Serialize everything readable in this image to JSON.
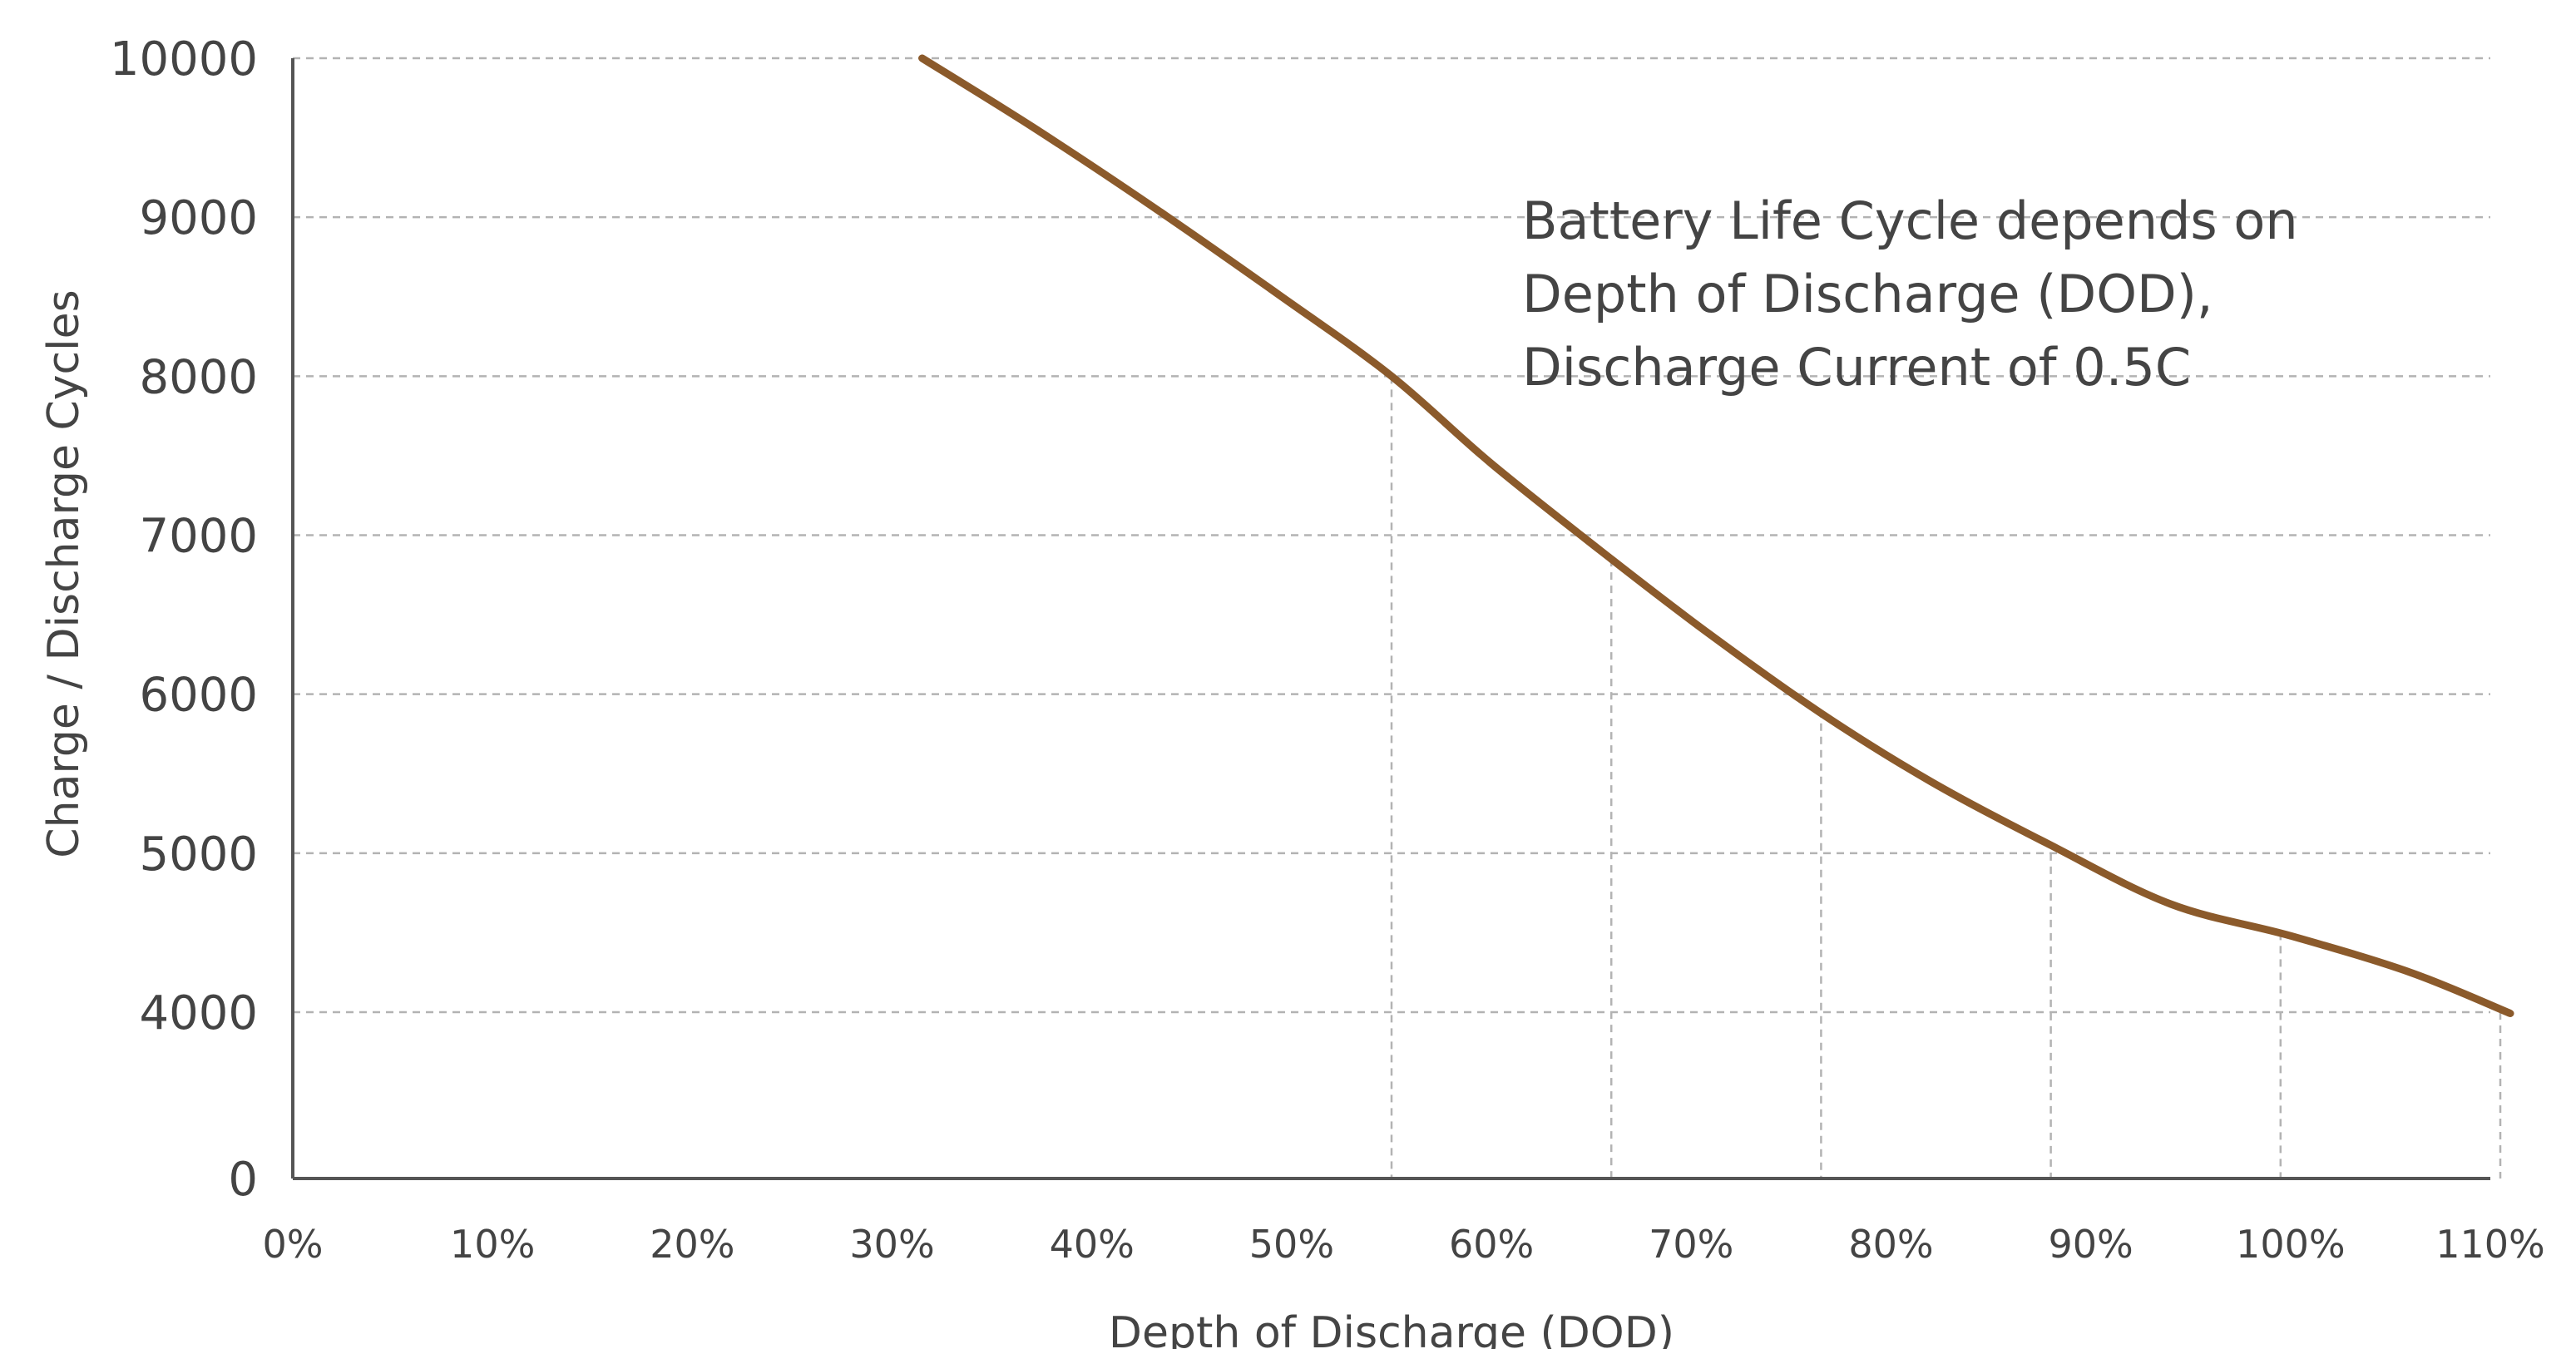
{
  "chart_data": {
    "type": "line",
    "title": "",
    "xlabel": "Depth of Discharge (DOD)",
    "ylabel": "Charge / Discharge Cycles",
    "x_tick_labels": [
      "0%",
      "10%",
      "20%",
      "30%",
      "40%",
      "50%",
      "60%",
      "70%",
      "80%",
      "90%",
      "100%",
      "110%"
    ],
    "y_tick_labels": [
      "0",
      "4000",
      "5000",
      "6000",
      "7000",
      "8000",
      "9000",
      "10000"
    ],
    "x_ticks": [
      0,
      10,
      20,
      30,
      40,
      50,
      60,
      70,
      80,
      90,
      100,
      110
    ],
    "y_ticks": [
      0,
      4000,
      5000,
      6000,
      7000,
      8000,
      9000,
      10000
    ],
    "xlim": [
      0,
      110
    ],
    "y_axis_segments": [
      {
        "from": 0,
        "to": 4000
      },
      {
        "from": 4000,
        "to": 10000
      }
    ],
    "grid": "dashed horizontal lines at y ticks; dashed drop lines at highlighted points",
    "annotation": [
      "Battery Life Cycle depends on",
      "Depth of Discharge (DOD),",
      "Discharge Current of 0.5C"
    ],
    "line_color": "#8b5a2b",
    "grid_color": "#b3b3b3",
    "text_color": "#444444",
    "series": [
      {
        "values": [
          {
            "x": 31.5,
            "y": 10000
          },
          {
            "x": 37,
            "y": 9570
          },
          {
            "x": 43,
            "y": 9070
          },
          {
            "x": 49.5,
            "y": 8500
          },
          {
            "x": 55,
            "y": 8000
          },
          {
            "x": 60,
            "y": 7450
          },
          {
            "x": 66,
            "y": 6850
          },
          {
            "x": 71,
            "y": 6370
          },
          {
            "x": 76.5,
            "y": 5880
          },
          {
            "x": 82,
            "y": 5450
          },
          {
            "x": 88,
            "y": 5050
          },
          {
            "x": 94,
            "y": 4680
          },
          {
            "x": 100,
            "y": 4480
          },
          {
            "x": 106,
            "y": 4250
          },
          {
            "x": 111,
            "y": 3970
          }
        ]
      }
    ],
    "highlighted_points": [
      {
        "x": 55,
        "y": 8000
      },
      {
        "x": 66,
        "y": 6850
      },
      {
        "x": 76.5,
        "y": 5900
      },
      {
        "x": 88,
        "y": 5000
      },
      {
        "x": 99.5,
        "y": 4500
      },
      {
        "x": 110.5,
        "y": 4000
      }
    ]
  }
}
